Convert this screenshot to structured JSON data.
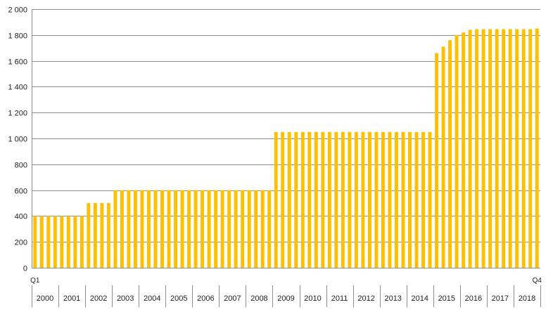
{
  "chart_data": {
    "type": "bar",
    "title": "",
    "xlabel": "",
    "ylabel": "",
    "ylim": [
      0,
      2000
    ],
    "yticks": [
      0,
      200,
      400,
      600,
      800,
      1000,
      1200,
      1400,
      1600,
      1800,
      2000
    ],
    "ytick_labels": [
      "0",
      "200",
      "400",
      "600",
      "800",
      "1 000",
      "1 200",
      "1 400",
      "1 600",
      "1 800",
      "2 000"
    ],
    "grid": true,
    "legend": "none",
    "bar_color": "#FFC000",
    "years": [
      "2000",
      "2001",
      "2002",
      "2003",
      "2004",
      "2005",
      "2006",
      "2007",
      "2008",
      "2009",
      "2010",
      "2011",
      "2012",
      "2013",
      "2014",
      "2015",
      "2016",
      "2017",
      "2018"
    ],
    "quarter_labels": {
      "first": "Q1",
      "last": "Q4"
    },
    "values": [
      400,
      400,
      400,
      400,
      400,
      400,
      400,
      400,
      500,
      500,
      500,
      500,
      600,
      600,
      600,
      600,
      600,
      600,
      600,
      600,
      600,
      600,
      600,
      600,
      600,
      600,
      600,
      600,
      600,
      600,
      600,
      600,
      600,
      600,
      600,
      600,
      1050,
      1050,
      1050,
      1050,
      1050,
      1050,
      1050,
      1050,
      1050,
      1050,
      1050,
      1050,
      1050,
      1050,
      1050,
      1050,
      1050,
      1050,
      1050,
      1050,
      1050,
      1050,
      1050,
      1050,
      1660,
      1710,
      1760,
      1800,
      1820,
      1840,
      1845,
      1845,
      1845,
      1845,
      1845,
      1845,
      1845,
      1845,
      1845,
      1850
    ]
  }
}
